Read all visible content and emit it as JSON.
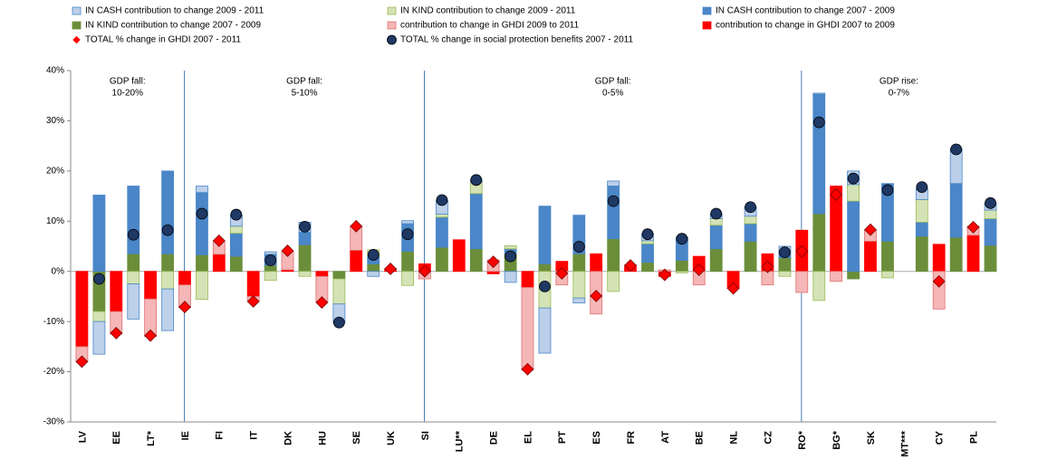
{
  "chart_data": {
    "type": "bar",
    "categories": [
      "LV",
      "EE",
      "LT*",
      "IE",
      "FI",
      "IT",
      "DK",
      "HU",
      "SE",
      "UK",
      "SI",
      "LU**",
      "DE",
      "EL",
      "PT",
      "ES",
      "FR",
      "AT",
      "BE",
      "NL",
      "CZ",
      "RO*",
      "BG*",
      "SK",
      "MT***",
      "CY",
      "PL"
    ],
    "series": [
      {
        "name": "contribution to change in GHDI 2007 to 2009",
        "color": "#ff0000",
        "edgecolor": "#ff0000",
        "marker": "bar",
        "stack": "ghdi",
        "values": [
          -15,
          -8,
          -5.5,
          -2.7,
          3.4,
          -5,
          0.3,
          -1,
          4.2,
          0.3,
          1.5,
          6.3,
          -0.5,
          -3.2,
          2,
          3.5,
          1,
          -1,
          3,
          -3.4,
          3.5,
          8.2,
          17,
          6,
          null,
          5.4,
          7.2
        ]
      },
      {
        "name": "contribution to change in GHDI 2009 to 2011",
        "color": "#f4b6b6",
        "edgecolor": "#e07070",
        "marker": "bar",
        "stack": "ghdi",
        "values": [
          -3,
          -4.5,
          -7.5,
          -4.5,
          2.6,
          -1,
          3.7,
          -5.2,
          4.8,
          0.3,
          -1.5,
          0,
          2.3,
          -16.5,
          -2.7,
          -8.5,
          0.3,
          0.3,
          -2.7,
          0,
          -2.7,
          -4.2,
          -2,
          2.3,
          null,
          -7.5,
          1.8
        ]
      },
      {
        "name": "IN KIND contribution to change 2007 - 2009",
        "color": "#6b8e3a",
        "edgecolor": "#6b8e3a",
        "marker": "bar",
        "stack": "benefits",
        "values": [
          -8,
          3.5,
          3.5,
          3.3,
          3,
          1.2,
          5.3,
          -1.5,
          1.5,
          4,
          4.8,
          4.5,
          3.5,
          1.5,
          3.5,
          6.5,
          1.8,
          2.2,
          4.5,
          6,
          2.7,
          11.5,
          -1.5,
          6,
          7,
          6.8,
          5.2
        ]
      },
      {
        "name": "IN CASH contribution to change 2007 - 2009",
        "color": "#4a86c8",
        "edgecolor": "#4a86c8",
        "marker": "bar",
        "stack": "benefits",
        "values": [
          15.2,
          13.5,
          16.5,
          12.4,
          4.6,
          2.2,
          2.5,
          0,
          1.5,
          5.5,
          6,
          11,
          1,
          11.5,
          7.7,
          10.5,
          3.7,
          4.3,
          4.7,
          3.5,
          1,
          23.8,
          14,
          11.5,
          2.8,
          10.7,
          5.3
        ]
      },
      {
        "name": "IN KIND contribution to change 2009 - 2011",
        "color": "#d4e3b5",
        "edgecolor": "#9bbb59",
        "marker": "bar",
        "stack": "benefits",
        "values": [
          -2,
          -2.5,
          -3.5,
          -5.6,
          1.4,
          -1.8,
          -1,
          -5,
          1.3,
          -2.8,
          0.6,
          2.3,
          0.6,
          -7.3,
          -5.3,
          -4,
          0.6,
          -0.3,
          1.3,
          1.5,
          -1,
          -5.8,
          3.3,
          -1.3,
          4.5,
          0,
          1.7
        ]
      },
      {
        "name": "IN CASH contribution to change 2009 - 2011",
        "color": "#bcd0ea",
        "edgecolor": "#4a86c8",
        "marker": "bar",
        "stack": "benefits",
        "values": [
          -6.5,
          -7,
          -8.3,
          1.3,
          2.3,
          0.5,
          2,
          -3.7,
          -1,
          0.6,
          2.8,
          0.4,
          -2.2,
          -9,
          -1,
          1,
          1.4,
          0.3,
          1,
          1.8,
          1.3,
          0.2,
          2.7,
          0,
          2.2,
          7,
          1.3
        ]
      },
      {
        "name": "TOTAL % change in GHDI 2007 - 2011",
        "color": "#ff0000",
        "edgecolor": "#7a0000",
        "marker": "diamond",
        "stack": "ghdi",
        "values": [
          -18,
          -12.3,
          -12.8,
          -7.1,
          6.1,
          -6,
          4.1,
          -6.2,
          9,
          0.5,
          0,
          null,
          1.9,
          -19.5,
          -0.4,
          -4.9,
          1.2,
          -0.7,
          0.3,
          -3.4,
          0.9,
          4,
          15.3,
          8.3,
          null,
          -2,
          8.8
        ]
      },
      {
        "name": "TOTAL % change in social protection benefits 2007 - 2011",
        "color": "#1f3864",
        "edgecolor": "#000000",
        "marker": "circle",
        "stack": "benefits",
        "values": [
          -1.5,
          7.3,
          8.2,
          11.5,
          11.3,
          2.2,
          8.9,
          -10.2,
          3.3,
          7.4,
          14.2,
          18.2,
          3,
          -3,
          4.9,
          14,
          7.4,
          6.5,
          11.5,
          12.8,
          3.8,
          29.7,
          18.5,
          16.2,
          16.8,
          24.3,
          13.6
        ]
      }
    ],
    "annotations": [
      [
        "GDP fall:",
        "10-20%"
      ],
      [
        "GDP fall:",
        "5-10%"
      ],
      [
        "GDP fall:",
        "0-5%"
      ],
      [
        "GDP rise:",
        "0-7%"
      ]
    ],
    "ylim": [
      -30,
      40
    ],
    "yticks": [
      {
        "value": -30,
        "label": "-30%"
      },
      {
        "value": -20,
        "label": "-20%"
      },
      {
        "value": -10,
        "label": "-10%"
      },
      {
        "value": 0,
        "label": "0%"
      },
      {
        "value": 10,
        "label": "10%"
      },
      {
        "value": 20,
        "label": "20%"
      },
      {
        "value": 30,
        "label": "30%"
      },
      {
        "value": 40,
        "label": "40%"
      }
    ],
    "grid": false,
    "legend": "top"
  }
}
